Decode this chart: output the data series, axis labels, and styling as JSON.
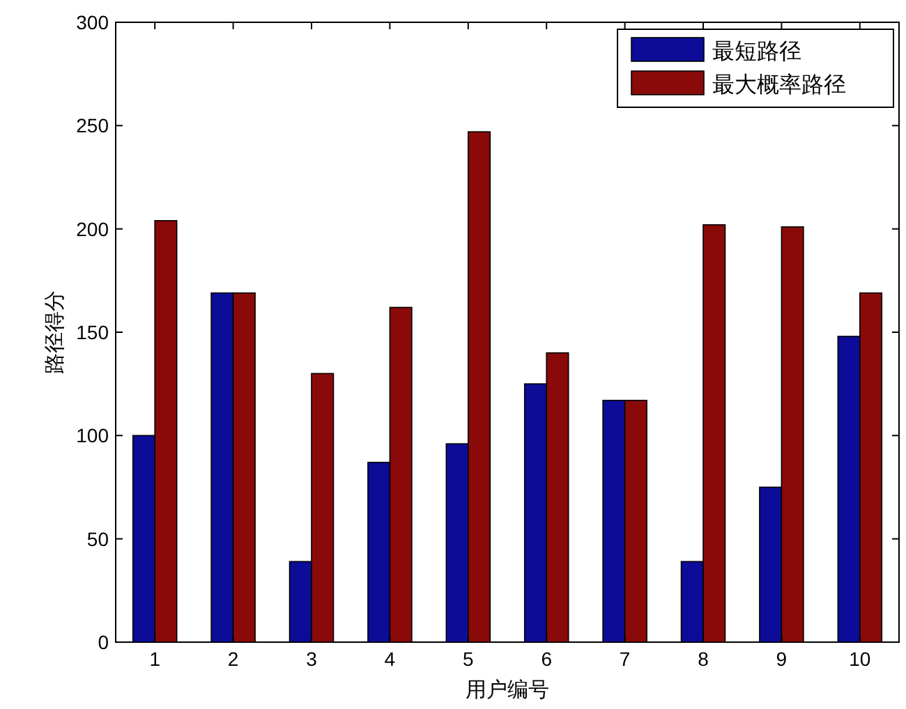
{
  "chart_data": {
    "type": "bar",
    "xlabel": "用户编号",
    "ylabel": "路径得分",
    "categories": [
      "1",
      "2",
      "3",
      "4",
      "5",
      "6",
      "7",
      "8",
      "9",
      "10"
    ],
    "series": [
      {
        "name": "最短路径",
        "color": "#0c0c98",
        "values": [
          100,
          169,
          39,
          87,
          96,
          125,
          117,
          39,
          75,
          148
        ]
      },
      {
        "name": "最大概率路径",
        "color": "#8a0a0a",
        "values": [
          204,
          169,
          130,
          162,
          247,
          140,
          117,
          202,
          201,
          169
        ]
      }
    ],
    "ylim": [
      0,
      300
    ],
    "yticks": [
      0,
      50,
      100,
      150,
      200,
      250,
      300
    ],
    "legend": "top right"
  }
}
